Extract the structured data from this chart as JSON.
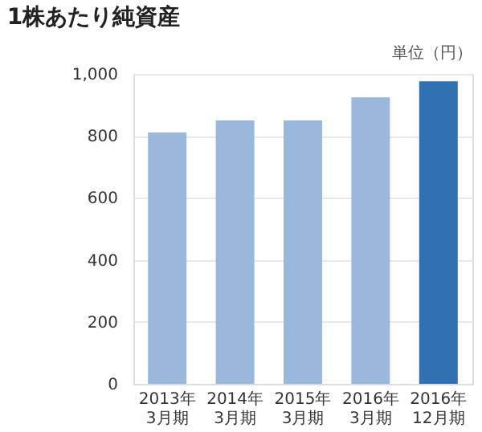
{
  "chart_data": {
    "type": "bar",
    "title": "1株あたり純資産",
    "annotations": [
      "単位（円）"
    ],
    "categories": [
      "2013年\n3月期",
      "2014年\n3月期",
      "2015年\n3月期",
      "2016年\n3月期",
      "2016年\n12月期"
    ],
    "values": [
      811,
      850,
      850,
      924,
      976
    ],
    "colors": [
      "#9ab8dc",
      "#9ab8dc",
      "#9ab8dc",
      "#9ab8dc",
      "#3070b3"
    ],
    "ylim": [
      0,
      1000
    ],
    "yticks": [
      0,
      200,
      400,
      600,
      800,
      {
        "value": 1000,
        "label": "1,000"
      }
    ],
    "grid": "y"
  }
}
